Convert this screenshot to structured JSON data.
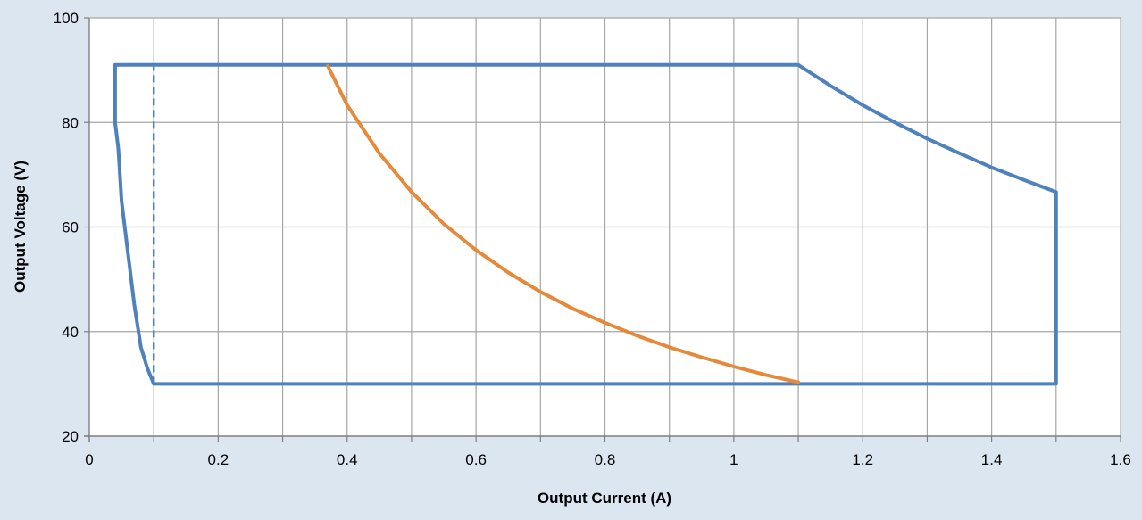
{
  "chart_data": {
    "type": "line",
    "title": "",
    "xlabel": "Output Current (A)",
    "ylabel": "Output Voltage (V)",
    "xlim": [
      0,
      1.6
    ],
    "ylim": [
      20,
      100
    ],
    "x_ticks": [
      0,
      0.1,
      0.2,
      0.3,
      0.4,
      0.5,
      0.6,
      0.7,
      0.8,
      0.9,
      1.0,
      1.1,
      1.2,
      1.3,
      1.4,
      1.5,
      1.6
    ],
    "x_tick_labels": [
      "0",
      "0.2",
      "0.4",
      "0.6",
      "0.8",
      "1",
      "1.2",
      "1.4",
      "1.6"
    ],
    "x_tick_label_values": [
      0,
      0.2,
      0.4,
      0.6,
      0.8,
      1.0,
      1.2,
      1.4,
      1.6
    ],
    "y_ticks": [
      20,
      40,
      60,
      80,
      100
    ],
    "y_tick_labels": [
      "20",
      "40",
      "60",
      "80",
      "100"
    ],
    "grid": true,
    "legend": "none",
    "colors": {
      "background": "#dce6f1",
      "plot_area": "#ffffff",
      "grid": "#a6a6a6",
      "envelope": "#4f81bd",
      "curve": "#e58a3a",
      "text": "#000000"
    },
    "series": [
      {
        "style": "solid",
        "color": "#4f81bd",
        "x": [
          0.1,
          0.09,
          0.08,
          0.07,
          0.06,
          0.05,
          0.045,
          0.04,
          0.04,
          1.1,
          1.15,
          1.2,
          1.25,
          1.3,
          1.35,
          1.4,
          1.45,
          1.5,
          1.5,
          0.1
        ],
        "y": [
          30,
          33,
          37,
          45,
          55,
          65,
          75,
          80,
          91,
          91,
          87,
          83.3,
          80,
          76.9,
          74.1,
          71.4,
          69,
          66.7,
          30,
          30
        ]
      },
      {
        "style": "dashed",
        "color": "#4f81bd",
        "x": [
          0.1,
          0.1
        ],
        "y": [
          30,
          91
        ]
      },
      {
        "style": "solid",
        "color": "#e58a3a",
        "x": [
          0.37,
          0.4,
          0.45,
          0.5,
          0.55,
          0.6,
          0.65,
          0.7,
          0.75,
          0.8,
          0.85,
          0.9,
          0.95,
          1.0,
          1.05,
          1.1
        ],
        "y": [
          90.8,
          83.3,
          74.1,
          66.7,
          60.6,
          55.6,
          51.3,
          47.6,
          44.4,
          41.7,
          39.2,
          37.0,
          35.1,
          33.3,
          31.7,
          30.3
        ]
      }
    ]
  }
}
